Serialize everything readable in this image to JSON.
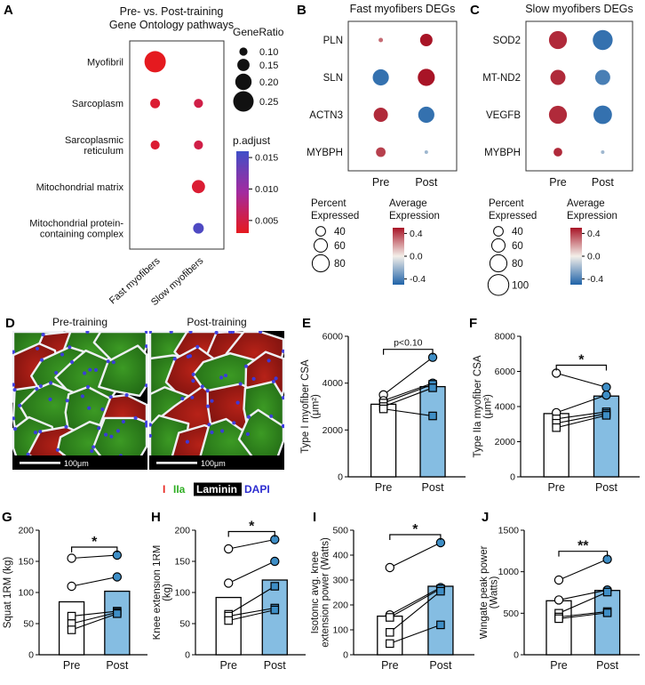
{
  "colors": {
    "red": "#a81426",
    "blue": "#1f63a8",
    "mid": "#f3efe9",
    "post_bar": "#85bde2",
    "post_point": "#3e8ec6",
    "laminin": "#eef0f4",
    "dapi": "#3a3ae0"
  },
  "panel_labels": {
    "A": "A",
    "B": "B",
    "C": "C",
    "D": "D",
    "E": "E",
    "F": "F",
    "G": "G",
    "H": "H",
    "I": "I",
    "J": "J"
  },
  "panelD": {
    "pre_title": "Pre-training",
    "post_title": "Post-training",
    "scale_bar": "100μm",
    "legend": [
      {
        "text": "I",
        "color": "#e8251f"
      },
      {
        "text": "IIa",
        "color": "#2fae23"
      },
      {
        "text": "Laminin",
        "color": "#ffffff",
        "bg": "#000000"
      },
      {
        "text": "DAPI",
        "color": "#2d2dd0"
      }
    ]
  },
  "chart_data": [
    {
      "panel": "A",
      "type": "scatter",
      "subtype": "go-dotplot",
      "title_lines": [
        "Pre- vs. Post-training",
        "Gene Ontology pathways"
      ],
      "rows": [
        "Myofibril",
        "Sarcoplasm",
        "Sarcoplasmic reticulum",
        "Mitochondrial matrix",
        "Mitochondrial protein-containing complex"
      ],
      "row_labels": [
        [
          "Myofibril"
        ],
        [
          "Sarcoplasm"
        ],
        [
          "Sarcoplasmic",
          "reticulum"
        ],
        [
          "Mitochondrial matrix"
        ],
        [
          "Mitochondrial protein-",
          "containing complex"
        ]
      ],
      "columns": [
        "Fast myofibers",
        "Slow myofibers"
      ],
      "points": [
        {
          "row": 0,
          "col": 0,
          "gene_ratio": 0.26,
          "p_adjust": 0.003
        },
        {
          "row": 1,
          "col": 0,
          "gene_ratio": 0.12,
          "p_adjust": 0.004
        },
        {
          "row": 2,
          "col": 0,
          "gene_ratio": 0.11,
          "p_adjust": 0.004
        },
        {
          "row": 1,
          "col": 1,
          "gene_ratio": 0.11,
          "p_adjust": 0.005
        },
        {
          "row": 2,
          "col": 1,
          "gene_ratio": 0.11,
          "p_adjust": 0.005
        },
        {
          "row": 3,
          "col": 1,
          "gene_ratio": 0.16,
          "p_adjust": 0.004
        },
        {
          "row": 4,
          "col": 1,
          "gene_ratio": 0.13,
          "p_adjust": 0.015
        }
      ],
      "legend": {
        "size_title": "GeneRatio",
        "sizes": [
          {
            "value": 0.1,
            "label": "0.10"
          },
          {
            "value": 0.15,
            "label": "0.15"
          },
          {
            "value": 0.2,
            "label": "0.20"
          },
          {
            "value": 0.25,
            "label": "0.25"
          }
        ],
        "color_title": "p.adjust",
        "color_ticks": [
          {
            "value": 0.015,
            "label": "0.015"
          },
          {
            "value": 0.01,
            "label": "0.010"
          },
          {
            "value": 0.005,
            "label": "0.005"
          }
        ]
      }
    },
    {
      "panel": "B",
      "type": "scatter",
      "subtype": "deg-dotplot",
      "title": "Fast myofibers DEGs",
      "rows": [
        "PLN",
        "SLN",
        "ACTN3",
        "MYBPH"
      ],
      "columns": [
        "Pre",
        "Post"
      ],
      "points": [
        {
          "row": 0,
          "col": 0,
          "percent": 12,
          "expression": 0.3
        },
        {
          "row": 0,
          "col": 1,
          "percent": 55,
          "expression": 0.5
        },
        {
          "row": 1,
          "col": 0,
          "percent": 75,
          "expression": -0.45
        },
        {
          "row": 1,
          "col": 1,
          "percent": 80,
          "expression": 0.5
        },
        {
          "row": 2,
          "col": 0,
          "percent": 65,
          "expression": 0.45
        },
        {
          "row": 2,
          "col": 1,
          "percent": 75,
          "expression": -0.45
        },
        {
          "row": 3,
          "col": 0,
          "percent": 40,
          "expression": 0.4
        },
        {
          "row": 3,
          "col": 1,
          "percent": 8,
          "expression": -0.2
        }
      ],
      "legend": {
        "size_title_lines": [
          "Percent",
          "Expressed"
        ],
        "sizes": [
          {
            "value": 40,
            "label": "40"
          },
          {
            "value": 60,
            "label": "60"
          },
          {
            "value": 80,
            "label": "80"
          }
        ],
        "color_title_lines": [
          "Average",
          "Expression"
        ],
        "color_ticks": [
          {
            "value": 0.4,
            "label": "0.4"
          },
          {
            "value": 0.0,
            "label": "0.0"
          },
          {
            "value": -0.4,
            "label": "-0.4"
          }
        ]
      }
    },
    {
      "panel": "C",
      "type": "scatter",
      "subtype": "deg-dotplot",
      "title": "Slow myofibers DEGs",
      "rows": [
        "SOD2",
        "MT-ND2",
        "VEGFB",
        "MYBPH"
      ],
      "columns": [
        "Pre",
        "Post"
      ],
      "points": [
        {
          "row": 0,
          "col": 0,
          "percent": 85,
          "expression": 0.45
        },
        {
          "row": 0,
          "col": 1,
          "percent": 95,
          "expression": -0.45
        },
        {
          "row": 1,
          "col": 0,
          "percent": 70,
          "expression": 0.45
        },
        {
          "row": 1,
          "col": 1,
          "percent": 70,
          "expression": -0.4
        },
        {
          "row": 2,
          "col": 0,
          "percent": 85,
          "expression": 0.45
        },
        {
          "row": 2,
          "col": 1,
          "percent": 88,
          "expression": -0.45
        },
        {
          "row": 3,
          "col": 0,
          "percent": 35,
          "expression": 0.45
        },
        {
          "row": 3,
          "col": 1,
          "percent": 8,
          "expression": -0.2
        }
      ],
      "legend": {
        "size_title_lines": [
          "Percent",
          "Expressed"
        ],
        "sizes": [
          {
            "value": 40,
            "label": "40"
          },
          {
            "value": 60,
            "label": "60"
          },
          {
            "value": 80,
            "label": "80"
          },
          {
            "value": 100,
            "label": "100"
          }
        ],
        "color_title_lines": [
          "Average",
          "Expression"
        ],
        "color_ticks": [
          {
            "value": 0.4,
            "label": "0.4"
          },
          {
            "value": 0.0,
            "label": "0.0"
          },
          {
            "value": -0.4,
            "label": "-0.4"
          }
        ]
      }
    },
    {
      "panel": "E",
      "type": "paired-bar",
      "ylabel": "Type I myofiber CSA (μm²)",
      "ylabel_lines": [
        "Type I myofiber CSA",
        "(μm²)"
      ],
      "categories": [
        "Pre",
        "Post"
      ],
      "ylim": [
        0,
        6000
      ],
      "yticks": [
        0,
        2000,
        4000,
        6000
      ],
      "bar_means": [
        3100,
        3850
      ],
      "significance": "p<0.10",
      "pairs": [
        {
          "pre": 3500,
          "post": 5100,
          "shape": "circle"
        },
        {
          "pre": 3250,
          "post": 4000,
          "shape": "circle"
        },
        {
          "pre": 3150,
          "post": 3950,
          "shape": "square"
        },
        {
          "pre": 3000,
          "post": 3800,
          "shape": "square"
        },
        {
          "pre": 2900,
          "post": 2600,
          "shape": "square"
        }
      ]
    },
    {
      "panel": "F",
      "type": "paired-bar",
      "ylabel": "Type IIa myofiber CSA (μm²)",
      "ylabel_lines": [
        "Type IIa myofiber CSA",
        "(μm²)"
      ],
      "categories": [
        "Pre",
        "Post"
      ],
      "ylim": [
        0,
        8000
      ],
      "yticks": [
        0,
        2000,
        4000,
        6000,
        8000
      ],
      "bar_means": [
        3600,
        4600
      ],
      "significance": "*",
      "pairs": [
        {
          "pre": 5900,
          "post": 5100,
          "shape": "circle"
        },
        {
          "pre": 3650,
          "post": 4650,
          "shape": "circle"
        },
        {
          "pre": 3300,
          "post": 3700,
          "shape": "square"
        },
        {
          "pre": 3050,
          "post": 3600,
          "shape": "square"
        },
        {
          "pre": 2800,
          "post": 3500,
          "shape": "square"
        }
      ]
    },
    {
      "panel": "G",
      "type": "paired-bar",
      "ylabel": "Squat 1RM (kg)",
      "ylabel_lines": [
        "Squat 1RM (kg)"
      ],
      "categories": [
        "Pre",
        "Post"
      ],
      "ylim": [
        0,
        200
      ],
      "yticks": [
        0,
        50,
        100,
        150,
        200
      ],
      "bar_means": [
        85,
        102
      ],
      "significance": "*",
      "pairs": [
        {
          "pre": 155,
          "post": 160,
          "shape": "circle"
        },
        {
          "pre": 110,
          "post": 125,
          "shape": "circle"
        },
        {
          "pre": 62,
          "post": 70,
          "shape": "square"
        },
        {
          "pre": 50,
          "post": 68,
          "shape": "square"
        },
        {
          "pre": 40,
          "post": 66,
          "shape": "square"
        }
      ]
    },
    {
      "panel": "H",
      "type": "paired-bar",
      "ylabel": "Knee extension 1RM (kg)",
      "ylabel_lines": [
        "Knee extension 1RM",
        "(kg)"
      ],
      "categories": [
        "Pre",
        "Post"
      ],
      "ylim": [
        0,
        200
      ],
      "yticks": [
        0,
        50,
        100,
        150,
        200
      ],
      "bar_means": [
        92,
        120
      ],
      "significance": "*",
      "pairs": [
        {
          "pre": 170,
          "post": 185,
          "shape": "circle"
        },
        {
          "pre": 115,
          "post": 150,
          "shape": "circle"
        },
        {
          "pre": 65,
          "post": 110,
          "shape": "square"
        },
        {
          "pre": 62,
          "post": 75,
          "shape": "square"
        },
        {
          "pre": 55,
          "post": 72,
          "shape": "square"
        }
      ]
    },
    {
      "panel": "I",
      "type": "paired-bar",
      "ylabel": "Isotonic avg. knee extension power (Watts)",
      "ylabel_lines": [
        "Isotonic avg. knee",
        "extension power (Watts)"
      ],
      "categories": [
        "Pre",
        "Post"
      ],
      "ylim": [
        0,
        500
      ],
      "yticks": [
        0,
        100,
        200,
        300,
        400,
        500
      ],
      "bar_means": [
        155,
        275
      ],
      "significance": "*",
      "pairs": [
        {
          "pre": 350,
          "post": 450,
          "shape": "circle"
        },
        {
          "pre": 160,
          "post": 270,
          "shape": "circle"
        },
        {
          "pre": 150,
          "post": 265,
          "shape": "square"
        },
        {
          "pre": 90,
          "post": 255,
          "shape": "square"
        },
        {
          "pre": 45,
          "post": 120,
          "shape": "square"
        }
      ]
    },
    {
      "panel": "J",
      "type": "paired-bar",
      "ylabel": "Wingate peak power (Watts)",
      "ylabel_lines": [
        "Wingate peak power",
        "(Watts)"
      ],
      "categories": [
        "Pre",
        "Post"
      ],
      "ylim": [
        0,
        1500
      ],
      "yticks": [
        0,
        500,
        1000,
        1500
      ],
      "bar_means": [
        650,
        775
      ],
      "significance": "**",
      "pairs": [
        {
          "pre": 900,
          "post": 1150,
          "shape": "circle"
        },
        {
          "pre": 660,
          "post": 780,
          "shape": "circle"
        },
        {
          "pre": 500,
          "post": 755,
          "shape": "square"
        },
        {
          "pre": 455,
          "post": 520,
          "shape": "square"
        },
        {
          "pre": 435,
          "post": 505,
          "shape": "square"
        }
      ]
    }
  ]
}
